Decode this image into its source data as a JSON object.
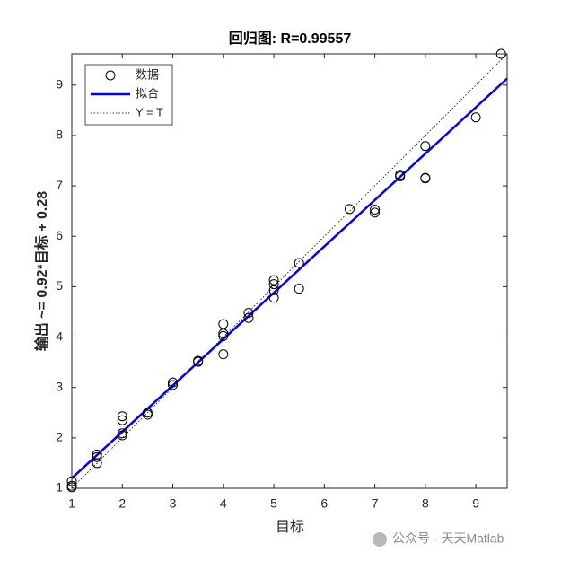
{
  "chart_data": {
    "type": "scatter",
    "title": "回归图: R=0.99557",
    "xlabel": "目标",
    "ylabel": "输出 ~= 0.92*目标 + 0.28",
    "xlim": [
      1,
      9.62
    ],
    "ylim": [
      1,
      9.62
    ],
    "xticks": [
      1,
      2,
      3,
      4,
      5,
      6,
      7,
      8,
      9
    ],
    "yticks": [
      1,
      2,
      3,
      4,
      5,
      6,
      7,
      8,
      9
    ],
    "legend": "upper left",
    "series": [
      {
        "name": "数据",
        "color": "#000000",
        "style": "marker",
        "x": [
          1,
          1,
          1,
          1.5,
          1.5,
          1.5,
          2,
          2,
          2,
          2,
          2.5,
          2.5,
          3,
          3,
          3.5,
          3.5,
          4,
          4,
          4,
          4,
          4.5,
          4.5,
          5,
          5,
          5,
          5,
          5.5,
          5.5,
          6.5,
          7,
          7,
          7.5,
          7.5,
          8,
          8,
          8,
          9,
          9.5
        ],
        "values": [
          1.14,
          1.05,
          1.02,
          1.67,
          1.62,
          1.5,
          2.43,
          2.35,
          2.09,
          2.05,
          2.5,
          2.46,
          3.1,
          3.05,
          3.53,
          3.51,
          4.26,
          4.07,
          4.02,
          3.66,
          4.48,
          4.38,
          5.13,
          5.05,
          4.93,
          4.78,
          5.47,
          4.96,
          6.54,
          6.53,
          6.47,
          7.22,
          7.19,
          7.79,
          7.16,
          7.15,
          8.36,
          9.62
        ]
      },
      {
        "name": "拟合",
        "color": "#0000ff",
        "style": "solid",
        "x": [
          1,
          9.62
        ],
        "values": [
          1.2,
          9.13
        ]
      },
      {
        "name": "Y = T",
        "color": "#000000",
        "style": "dotted",
        "x": [
          1,
          9.62
        ],
        "values": [
          1,
          9.62
        ]
      }
    ]
  },
  "watermark": "公众号 · 天天Matlab"
}
